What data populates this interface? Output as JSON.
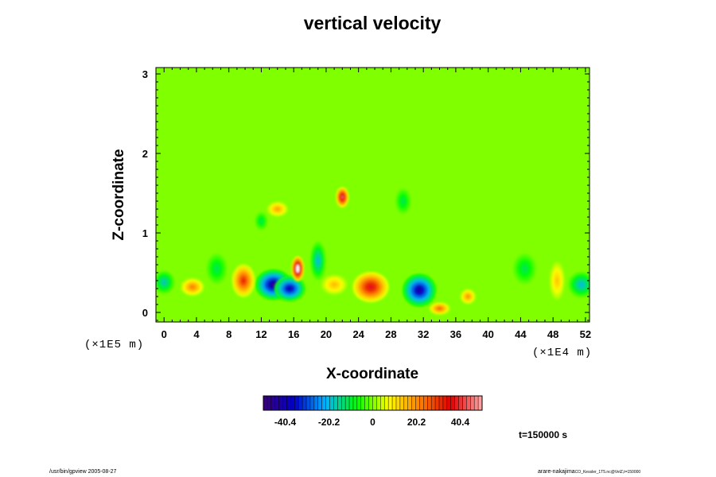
{
  "chart_data": {
    "type": "heatmap",
    "title": "vertical velocity",
    "xlabel": "X-coordinate",
    "ylabel": "Z-coordinate",
    "x_unit": "(×1E4 m)",
    "y_unit": "(×1E5 m)",
    "x_ticks": [
      "0",
      "4",
      "8",
      "12",
      "16",
      "20",
      "24",
      "28",
      "32",
      "36",
      "40",
      "44",
      "48",
      "52"
    ],
    "y_ticks": [
      "0",
      "1",
      "2",
      "3"
    ],
    "xlim": [
      -1,
      52.5
    ],
    "ylim": [
      -0.12,
      3.08
    ],
    "colorbar": {
      "ticks": [
        "-40.4",
        "-20.2",
        "0",
        "20.2",
        "40.4"
      ],
      "tick_values": [
        -40.4,
        -20.2,
        0,
        20.2,
        40.4
      ],
      "range": [
        -50.5,
        50.5
      ],
      "colors": [
        "#3a0078",
        "#0000c8",
        "#00b4ff",
        "#00ff00",
        "#ffff00",
        "#ff8000",
        "#e00000",
        "#ffaaaa"
      ]
    },
    "background_value": 0,
    "features": [
      {
        "x": 13.5,
        "z": 0.35,
        "sx": 1.4,
        "sz": 0.12,
        "w": -45
      },
      {
        "x": 15.5,
        "z": 0.3,
        "sx": 1.2,
        "sz": 0.1,
        "w": -40
      },
      {
        "x": 31.5,
        "z": 0.28,
        "sx": 1.3,
        "sz": 0.13,
        "w": -42
      },
      {
        "x": 16.5,
        "z": 0.55,
        "sx": 0.5,
        "sz": 0.1,
        "w": 55
      },
      {
        "x": 22.0,
        "z": 1.45,
        "sx": 0.5,
        "sz": 0.08,
        "w": 45
      },
      {
        "x": 25.5,
        "z": 0.32,
        "sx": 1.4,
        "sz": 0.12,
        "w": 38
      },
      {
        "x": 9.8,
        "z": 0.4,
        "sx": 0.9,
        "sz": 0.13,
        "w": 32
      },
      {
        "x": 3.5,
        "z": 0.32,
        "sx": 0.9,
        "sz": 0.07,
        "w": 22
      },
      {
        "x": 0.0,
        "z": 0.38,
        "sx": 0.8,
        "sz": 0.09,
        "w": -18
      },
      {
        "x": 51.5,
        "z": 0.35,
        "sx": 1.0,
        "sz": 0.1,
        "w": -20
      },
      {
        "x": 37.5,
        "z": 0.2,
        "sx": 0.6,
        "sz": 0.06,
        "w": 20
      },
      {
        "x": 44.5,
        "z": 0.55,
        "sx": 0.9,
        "sz": 0.12,
        "w": -12
      },
      {
        "x": 48.5,
        "z": 0.4,
        "sx": 0.6,
        "sz": 0.15,
        "w": 14
      },
      {
        "x": 12.0,
        "z": 1.15,
        "sx": 0.5,
        "sz": 0.07,
        "w": -12
      },
      {
        "x": 19.0,
        "z": 0.65,
        "sx": 0.6,
        "sz": 0.15,
        "w": -20
      },
      {
        "x": 29.5,
        "z": 1.4,
        "sx": 0.6,
        "sz": 0.1,
        "w": -12
      },
      {
        "x": 14.0,
        "z": 1.3,
        "sx": 0.8,
        "sz": 0.06,
        "w": 18
      },
      {
        "x": 6.5,
        "z": 0.55,
        "sx": 0.8,
        "sz": 0.12,
        "w": -12
      },
      {
        "x": 21.0,
        "z": 0.35,
        "sx": 1.0,
        "sz": 0.08,
        "w": 15
      },
      {
        "x": 34.0,
        "z": 0.05,
        "sx": 0.8,
        "sz": 0.05,
        "w": 25
      }
    ],
    "annotation": "t=150000 s"
  },
  "footer": {
    "left": "/usr/bin/gpview 2005-08-27",
    "right_main": "arare-nakajima",
    "right_small": "CO_Kessler_1T5.nc@VelZ,t=150000"
  }
}
